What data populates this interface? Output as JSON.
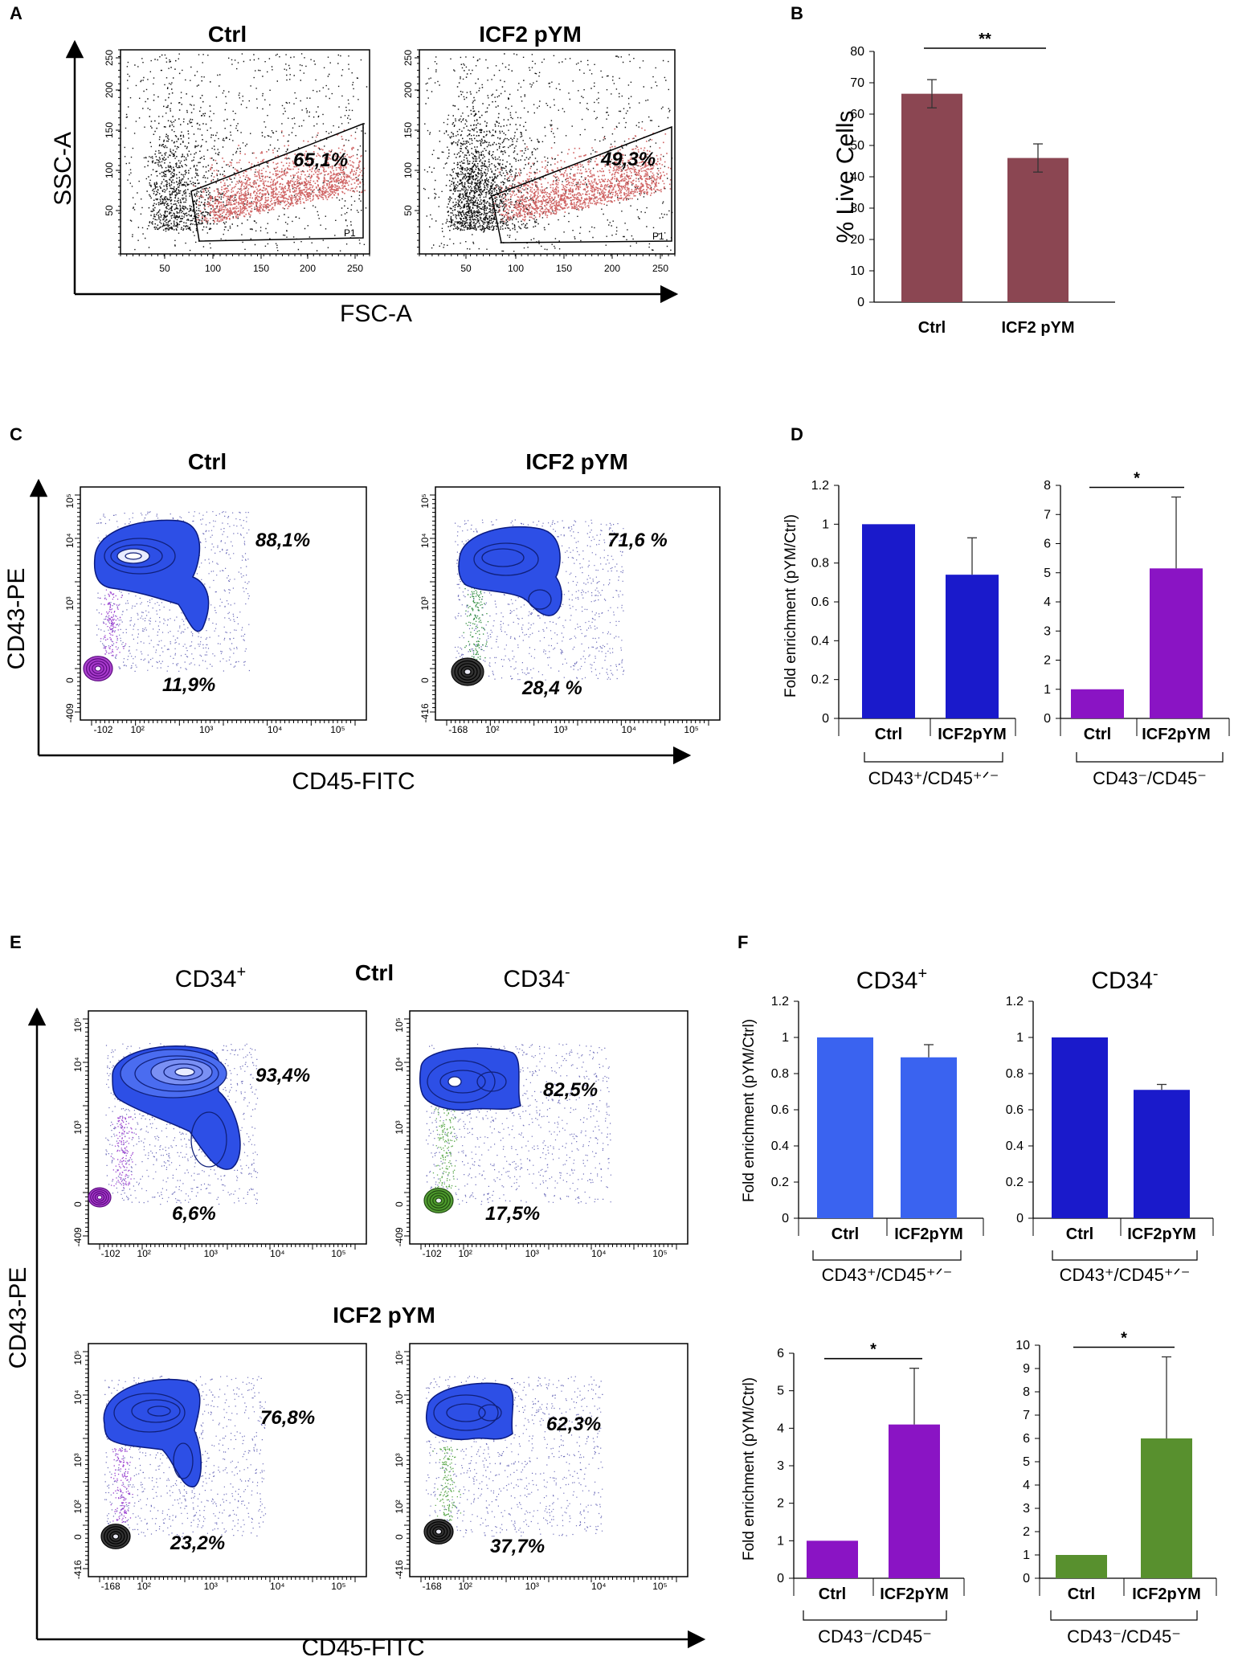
{
  "panel_letters": {
    "A": "A",
    "B": "B",
    "C": "C",
    "D": "D",
    "E": "E",
    "F": "F"
  },
  "panel_a": {
    "title_ctrl": "Ctrl",
    "title_icf": "ICF2 pYM",
    "ylabel": "SSC-A",
    "xlabel": "FSC-A",
    "gate_ctrl": "65,1%",
    "gate_icf": "49,3%",
    "gate_name": "P1",
    "x_ticks": [
      "50",
      "100",
      "150",
      "200",
      "250"
    ],
    "y_ticks": [
      "50",
      "100",
      "150",
      "200",
      "250"
    ]
  },
  "panel_c": {
    "title_ctrl": "Ctrl",
    "title_icf": "ICF2 pYM",
    "ylabel": "CD43-PE",
    "xlabel": "CD45-FITC",
    "ctrl_upper": "88,1%",
    "ctrl_lower": "11,9%",
    "icf_upper": "71,6 %",
    "icf_lower": "28,4 %",
    "ctrl_x_ticks": [
      "-102",
      "10²",
      "10³",
      "10⁴",
      "10⁵"
    ],
    "icf_x_ticks": [
      "-168",
      "10²",
      "10³",
      "10⁴",
      "10⁵"
    ],
    "ctrl_y_ticks": [
      "-409",
      "0",
      "10³",
      "10⁴",
      "10⁵"
    ],
    "icf_y_ticks": [
      "-416",
      "0",
      "10³",
      "10⁴",
      "10⁵"
    ]
  },
  "panel_e": {
    "title_ctrl": "Ctrl",
    "title_icf": "ICF2 pYM",
    "col_pos": "CD34",
    "col_pos_sup": "+",
    "col_neg": "CD34",
    "col_neg_sup": "-",
    "ylabel": "CD43-PE",
    "xlabel": "CD45-FITC",
    "ctrl_pos_upper": "93,4%",
    "ctrl_pos_lower": "6,6%",
    "ctrl_neg_upper": "82,5%",
    "ctrl_neg_lower": "17,5%",
    "icf_pos_upper": "76,8%",
    "icf_pos_lower": "23,2%",
    "icf_neg_upper": "62,3%",
    "icf_neg_lower": "37,7%",
    "ctrl_x_ticks": [
      "-102",
      "10²",
      "10³",
      "10⁴",
      "10⁵"
    ],
    "icf_x_ticks": [
      "-168",
      "10²",
      "10³",
      "10⁴",
      "10⁵"
    ],
    "ctrl_y_ticks": [
      "-409",
      "0",
      "10³",
      "10⁴",
      "10⁵"
    ],
    "icf_y_ticks": [
      "-416",
      "0",
      "10²",
      "10³",
      "10⁴",
      "10⁵"
    ]
  },
  "panel_f_headers": {
    "pos": "CD34",
    "pos_sup": "+",
    "neg": "CD34",
    "neg_sup": "-"
  },
  "colors": {
    "maroon": "#8b4652",
    "royal": "#1a1acb",
    "purple": "#8a14c4",
    "light_blue": "#3a63f0",
    "green": "#58902e"
  },
  "chart_data": [
    {
      "id": "B",
      "type": "bar",
      "title": "",
      "ylabel": "% Live Cells",
      "categories": [
        "Ctrl",
        "ICF2 pYM"
      ],
      "values": [
        66.5,
        46
      ],
      "errors": [
        4.5,
        4.5
      ],
      "ylim": [
        0,
        80
      ],
      "yticks": [
        0,
        10,
        20,
        30,
        40,
        50,
        60,
        70,
        80
      ],
      "colors": [
        "#8b4652",
        "#8b4652"
      ],
      "significance": "**",
      "group_label": ""
    },
    {
      "id": "D1",
      "type": "bar",
      "title": "",
      "ylabel": "Fold enrichment (pYM/Ctrl)",
      "categories": [
        "Ctrl",
        "ICF2pYM"
      ],
      "values": [
        1,
        0.74
      ],
      "errors": [
        0,
        0.19
      ],
      "ylim": [
        0,
        1.2
      ],
      "yticks": [
        "0",
        "0.2",
        "0.4",
        "0.6",
        "0.8",
        "1",
        "1.2"
      ],
      "colors": [
        "#1a1acb",
        "#1a1acb"
      ],
      "significance": "",
      "group_label": "CD43⁺/CD45⁺ᐟ⁻"
    },
    {
      "id": "D2",
      "type": "bar",
      "title": "",
      "ylabel": "",
      "categories": [
        "Ctrl",
        "ICF2pYM"
      ],
      "values": [
        1,
        5.15
      ],
      "errors": [
        0,
        2.45
      ],
      "ylim": [
        0,
        8
      ],
      "yticks": [
        "0",
        "1",
        "2",
        "3",
        "4",
        "5",
        "6",
        "7",
        "8"
      ],
      "colors": [
        "#8a14c4",
        "#8a14c4"
      ],
      "significance": "*",
      "group_label": "CD43⁻/CD45⁻"
    },
    {
      "id": "F1",
      "type": "bar",
      "title": "CD34+",
      "ylabel": "Fold enrichment (pYM/Ctrl)",
      "categories": [
        "Ctrl",
        "ICF2pYM"
      ],
      "values": [
        1,
        0.89
      ],
      "errors": [
        0,
        0.07
      ],
      "ylim": [
        0,
        1.2
      ],
      "yticks": [
        "0",
        "0.2",
        "0.4",
        "0.6",
        "0.8",
        "1",
        "1.2"
      ],
      "colors": [
        "#3a63f0",
        "#3a63f0"
      ],
      "significance": "",
      "group_label": "CD43⁺/CD45⁺ᐟ⁻"
    },
    {
      "id": "F2",
      "type": "bar",
      "title": "CD34-",
      "ylabel": "",
      "categories": [
        "Ctrl",
        "ICF2pYM"
      ],
      "values": [
        1,
        0.71
      ],
      "errors": [
        0,
        0.03
      ],
      "ylim": [
        0,
        1.2
      ],
      "yticks": [
        "0",
        "0.2",
        "0.4",
        "0.6",
        "0.8",
        "1",
        "1.2"
      ],
      "colors": [
        "#1a1acb",
        "#1a1acb"
      ],
      "significance": "",
      "group_label": "CD43⁺/CD45⁺ᐟ⁻"
    },
    {
      "id": "F3",
      "type": "bar",
      "title": "",
      "ylabel": "Fold enrichment (pYM/Ctrl)",
      "categories": [
        "Ctrl",
        "ICF2pYM"
      ],
      "values": [
        1,
        4.1
      ],
      "errors": [
        0,
        1.5
      ],
      "ylim": [
        0,
        6
      ],
      "yticks": [
        "0",
        "1",
        "2",
        "3",
        "4",
        "5",
        "6"
      ],
      "colors": [
        "#8a14c4",
        "#8a14c4"
      ],
      "significance": "*",
      "group_label": "CD43⁻/CD45⁻"
    },
    {
      "id": "F4",
      "type": "bar",
      "title": "",
      "ylabel": "",
      "categories": [
        "Ctrl",
        "ICF2pYM"
      ],
      "values": [
        1,
        6
      ],
      "errors": [
        0,
        3.5
      ],
      "ylim": [
        0,
        10
      ],
      "yticks": [
        "0",
        "1",
        "2",
        "3",
        "4",
        "5",
        "6",
        "7",
        "8",
        "9",
        "10"
      ],
      "colors": [
        "#58902e",
        "#58902e"
      ],
      "significance": "*",
      "group_label": "CD43⁻/CD45⁻"
    }
  ]
}
